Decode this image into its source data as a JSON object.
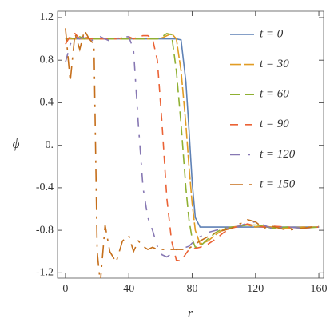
{
  "chart_data": {
    "type": "line",
    "xlabel": "r",
    "ylabel": "ϕ",
    "x": [
      0,
      3,
      6,
      9,
      12,
      15,
      18,
      20,
      22,
      25,
      28,
      32,
      36,
      40,
      43,
      46,
      49,
      52,
      55,
      58,
      61,
      64,
      67,
      70,
      73,
      76,
      78,
      80,
      82,
      85,
      90,
      95,
      100,
      105,
      110,
      115,
      120,
      125,
      130,
      140,
      150,
      160
    ],
    "series": [
      {
        "name": "t = 0",
        "color": "#5e81b5",
        "values": [
          1,
          1,
          1,
          1,
          1,
          1,
          1,
          1,
          1,
          1,
          1,
          1,
          1,
          1,
          1,
          1,
          1,
          1,
          1,
          1,
          1,
          1,
          1,
          1,
          0.99,
          0.6,
          0.15,
          -0.35,
          -0.68,
          -0.77,
          -0.77,
          -0.77,
          -0.77,
          -0.77,
          -0.77,
          -0.77,
          -0.77,
          -0.77,
          -0.77,
          -0.77,
          -0.77,
          -0.77
        ]
      },
      {
        "name": "t = 30",
        "color": "#e19c24",
        "values": [
          1,
          1,
          1,
          1,
          1,
          1,
          1,
          1,
          1,
          1,
          1,
          1,
          1,
          1,
          1,
          1,
          1,
          1,
          1,
          1,
          1.01,
          1.03,
          1.05,
          1,
          0.7,
          0.2,
          -0.2,
          -0.55,
          -0.8,
          -0.93,
          -0.9,
          -0.84,
          -0.79,
          -0.77,
          -0.76,
          -0.75,
          -0.77,
          -0.76,
          -0.77,
          -0.78,
          -0.77,
          -0.77
        ]
      },
      {
        "name": "t = 60",
        "color": "#8fb032",
        "values": [
          1,
          1.01,
          1,
          1.02,
          1,
          1.02,
          1,
          1,
          1,
          1,
          1,
          1,
          1,
          1,
          1,
          1,
          1,
          1,
          1,
          1,
          1.02,
          1.05,
          1.04,
          0.7,
          0.2,
          -0.4,
          -0.7,
          -0.88,
          -0.96,
          -0.95,
          -0.88,
          -0.82,
          -0.78,
          -0.77,
          -0.76,
          -0.75,
          -0.75,
          -0.76,
          -0.78,
          -0.77,
          -0.78,
          -0.77
        ]
      },
      {
        "name": "t = 90",
        "color": "#eb6235",
        "values": [
          0.95,
          1.03,
          1.05,
          1,
          1.02,
          1,
          1,
          1,
          1,
          1,
          1,
          1,
          1.01,
          1.02,
          1,
          1.02,
          1.03,
          1.03,
          1,
          0.8,
          0.2,
          -0.5,
          -0.9,
          -1.08,
          -1.09,
          -1.02,
          -0.98,
          -0.98,
          -0.97,
          -0.96,
          -0.93,
          -0.88,
          -0.82,
          -0.78,
          -0.76,
          -0.74,
          -0.76,
          -0.77,
          -0.76,
          -0.77,
          -0.78,
          -0.77
        ]
      },
      {
        "name": "t = 120",
        "color": "#8778b3",
        "values": [
          0.78,
          0.95,
          1.02,
          1,
          1.02,
          1,
          0.98,
          1,
          1.02,
          1,
          0.98,
          1,
          1.02,
          1.02,
          0.9,
          0.2,
          -0.4,
          -0.68,
          -0.8,
          -0.95,
          -1.03,
          -1.05,
          -1.02,
          -0.98,
          -0.97,
          -0.96,
          -0.95,
          -0.92,
          -0.9,
          -0.86,
          -0.82,
          -0.8,
          -0.78,
          -0.77,
          -0.76,
          -0.73,
          -0.72,
          -0.75,
          -0.78,
          -0.77,
          -0.78,
          -0.77
        ]
      },
      {
        "name": "t = 150",
        "color": "#c56e1a",
        "values": [
          1.1,
          0.6,
          1.05,
          0.9,
          1.08,
          1,
          0.95,
          -1,
          -1.3,
          -0.75,
          -1,
          -1.1,
          -0.9,
          -0.85,
          -1,
          -0.9,
          -0.95,
          -0.98,
          -0.96,
          -0.98,
          -0.98,
          -0.98,
          -0.98,
          -0.98,
          -0.98,
          -0.98,
          -0.97,
          -0.95,
          -0.93,
          -0.9,
          -0.86,
          -0.82,
          -0.8,
          -0.78,
          -0.74,
          -0.7,
          -0.72,
          -0.78,
          -0.76,
          -0.8,
          -0.78,
          -0.76
        ]
      }
    ],
    "xlim": [
      -5,
      163
    ],
    "ylim": [
      -1.25,
      1.26
    ],
    "xticks": [
      0,
      40,
      80,
      120,
      160
    ],
    "yticks": [
      -1.2,
      -0.8,
      -0.4,
      {
        "value": 0,
        "label": "0."
      },
      0.4,
      0.8,
      1.2
    ],
    "legend": "top-right"
  }
}
